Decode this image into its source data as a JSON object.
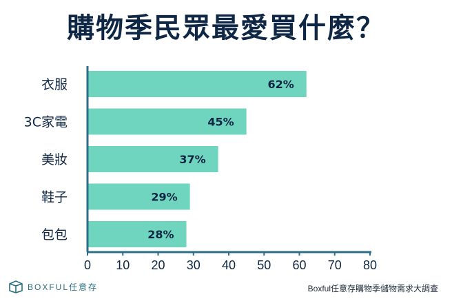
{
  "header": {
    "title": "購物季民眾最愛買什麼？"
  },
  "chart_data": {
    "type": "bar",
    "orientation": "horizontal",
    "categories": [
      "衣服",
      "3C家電",
      "美妝",
      "鞋子",
      "包包"
    ],
    "values": [
      62,
      45,
      37,
      29,
      28
    ],
    "value_labels": [
      "62%",
      "45%",
      "37%",
      "29%",
      "28%"
    ],
    "x_ticks": [
      "0",
      "10",
      "20",
      "30",
      "40",
      "50",
      "60",
      "70",
      "80"
    ],
    "xlim": [
      0,
      80
    ],
    "grid": false,
    "bar_color": "#6fd5be",
    "axis_color": "#2c6e8a",
    "label_color": "#0f2744"
  },
  "footer": {
    "brand_name": "BOXFUL任意存",
    "source": "Boxful任意存購物季儲物需求大調查"
  }
}
